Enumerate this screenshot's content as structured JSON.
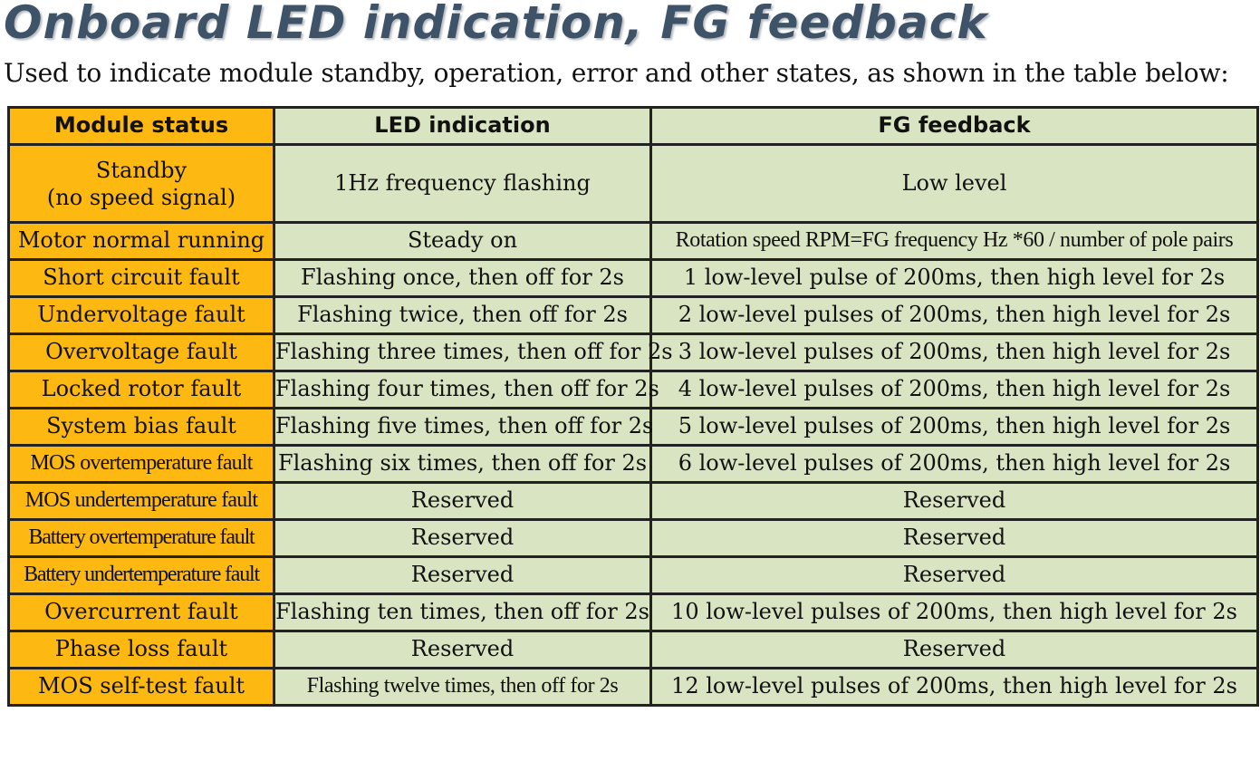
{
  "title": "Onboard LED indication, FG feedback",
  "subtitle": "Used to indicate module standby, operation, error and other states, as shown in the table below:",
  "colors": {
    "status_column": "#fdb812",
    "value_columns": "#d9e4c2",
    "title": "#3e5367",
    "border": "#222222"
  },
  "table": {
    "headers": [
      "Module status",
      "LED indication",
      "FG feedback"
    ],
    "rows": [
      {
        "status_line1": "Standby",
        "status_line2": "(no speed signal)",
        "led": "1Hz frequency flashing",
        "fg": "Low level"
      },
      {
        "status": "Motor normal running",
        "led": "Steady on",
        "fg": "Rotation speed RPM=FG frequency Hz *60 / number of pole pairs"
      },
      {
        "status": "Short circuit fault",
        "led": "Flashing once, then off for 2s",
        "fg": "1 low-level pulse of 200ms, then high level for 2s"
      },
      {
        "status": "Undervoltage fault",
        "led": "Flashing twice, then off for 2s",
        "fg": "2 low-level pulses of 200ms, then high level for 2s"
      },
      {
        "status": "Overvoltage fault",
        "led": "Flashing three times, then off for 2s",
        "fg": "3 low-level pulses of 200ms, then high level for 2s"
      },
      {
        "status": "Locked rotor fault",
        "led": "Flashing four times, then off for 2s",
        "fg": "4 low-level pulses of 200ms, then high level for 2s"
      },
      {
        "status": "System bias fault",
        "led": "Flashing five times, then off for 2s",
        "fg": "5 low-level pulses of 200ms, then high level for 2s"
      },
      {
        "status": "MOS overtemperature fault",
        "led": "Flashing six times, then off for 2s",
        "fg": "6 low-level pulses of 200ms, then high level for 2s"
      },
      {
        "status": "MOS undertemperature fault",
        "led": "Reserved",
        "fg": "Reserved"
      },
      {
        "status": "Battery overtemperature fault",
        "led": "Reserved",
        "fg": "Reserved"
      },
      {
        "status": "Battery undertemperature fault",
        "led": "Reserved",
        "fg": "Reserved"
      },
      {
        "status": "Overcurrent fault",
        "led": "Flashing ten times, then off for 2s",
        "fg": "10 low-level pulses of 200ms, then high level for 2s"
      },
      {
        "status": "Phase loss fault",
        "led": "Reserved",
        "fg": "Reserved"
      },
      {
        "status": "MOS self-test fault",
        "led": "Flashing twelve times, then off for 2s",
        "fg": "12 low-level pulses of 200ms, then high level for 2s"
      }
    ]
  }
}
